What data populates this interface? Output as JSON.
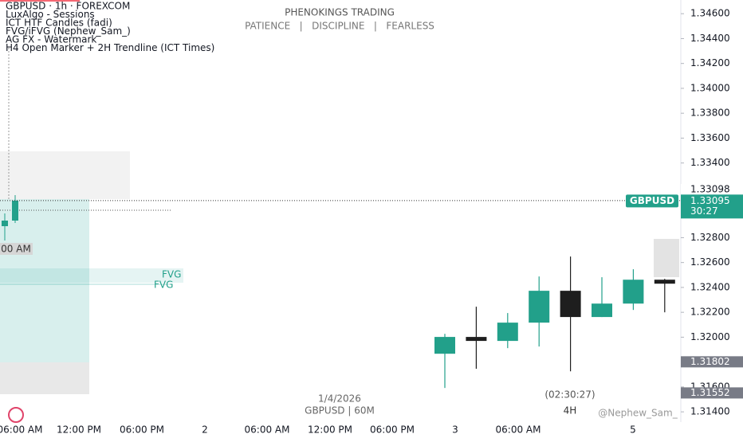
{
  "chart_data": {
    "type": "candlestick",
    "title": "PHENOKINGS TRADING",
    "subtitle": "PATIENCE   |   DISCIPLINE   |   FEARLESS",
    "legend_lines": [
      "GBPUSD · 1h · FOREXCOM",
      "LuxAlgo - Sessions",
      "ICT HTF Candles (fadi)",
      "FVG/iFVG (Nephew_Sam_)",
      "AG FX - Watermark",
      "H4 Open Marker + 2H Trendline (ICT Times)"
    ],
    "annotations": [
      "FVG",
      "FVG",
      "00 AM",
      "1/4/2026",
      "GBPUSD  |  60M",
      "4H",
      "(02:30:27)",
      "@Nephew_Sam_"
    ],
    "x_labels": [
      "06:00 AM",
      "12:00 PM",
      "06:00 PM",
      "2",
      "06:00 AM",
      "12:00 PM",
      "06:00 PM",
      "3",
      "06:00 AM",
      "5"
    ],
    "series": [
      {
        "name": "4H",
        "up_color": "#22a08a",
        "down_color": "#1e1e1e",
        "open": [
          1.31867,
          1.32002,
          1.3197,
          1.32117,
          1.32373,
          1.32162,
          1.3227,
          1.32462
        ],
        "high": [
          1.32027,
          1.32245,
          1.32194,
          1.32488,
          1.32648,
          1.32482,
          1.32546,
          1.32469
        ],
        "low": [
          1.31592,
          1.31746,
          1.31912,
          1.31925,
          1.31726,
          1.32162,
          1.32219,
          1.322
        ],
        "close": [
          1.32002,
          1.3197,
          1.32117,
          1.32373,
          1.32162,
          1.3227,
          1.32462,
          1.3243
        ]
      }
    ],
    "ylim": [
      1.3136,
      1.3471
    ],
    "yticks": [
      {
        "value": 1.346,
        "label": "1.34600"
      },
      {
        "value": 1.344,
        "label": "1.34400"
      },
      {
        "value": 1.342,
        "label": "1.34200"
      },
      {
        "value": 1.34,
        "label": "1.34000"
      },
      {
        "value": 1.338,
        "label": "1.33800"
      },
      {
        "value": 1.336,
        "label": "1.33600"
      },
      {
        "value": 1.334,
        "label": "1.33400"
      },
      {
        "value": 1.328,
        "label": "1.32800"
      },
      {
        "value": 1.326,
        "label": "1.32600"
      },
      {
        "value": 1.324,
        "label": "1.32400"
      },
      {
        "value": 1.322,
        "label": "1.32200"
      },
      {
        "value": 1.32,
        "label": "1.32000"
      },
      {
        "value": 1.316,
        "label": "1.31600"
      },
      {
        "value": 1.314,
        "label": "1.31400"
      }
    ],
    "price_tags": [
      {
        "value": 1.33098,
        "label": "1.33098"
      },
      {
        "value": 1.33095,
        "label": "1.33095"
      },
      {
        "value": 1.31802,
        "label": "1.31802"
      },
      {
        "value": 1.31552,
        "label": "1.31552"
      }
    ],
    "symbol": "GBPUSD",
    "countdown": "30:27"
  }
}
